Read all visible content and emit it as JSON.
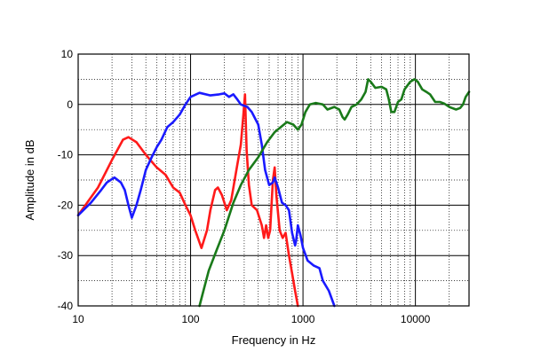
{
  "chart_data": {
    "type": "line",
    "xlabel": "Frequency in Hz",
    "ylabel": "Amplitude in dB",
    "x_scale": "log",
    "xlim": [
      10,
      30000
    ],
    "ylim": [
      -40,
      10
    ],
    "x_ticks": [
      {
        "value": 10,
        "label": "10"
      },
      {
        "value": 100,
        "label": "100"
      },
      {
        "value": 1000,
        "label": "1000"
      },
      {
        "value": 10000,
        "label": "10000"
      }
    ],
    "y_ticks": [
      {
        "value": 10,
        "label": "10"
      },
      {
        "value": 0,
        "label": "0"
      },
      {
        "value": -10,
        "label": "-10"
      },
      {
        "value": -20,
        "label": "-20"
      },
      {
        "value": -30,
        "label": "-30"
      },
      {
        "value": -40,
        "label": "-40"
      }
    ],
    "grid": true,
    "legend": "none",
    "series": [
      {
        "color": "#ff1a1a",
        "points": [
          [
            10,
            -22
          ],
          [
            15,
            -16.5
          ],
          [
            20,
            -11
          ],
          [
            25,
            -7
          ],
          [
            28,
            -6.5
          ],
          [
            33,
            -7.5
          ],
          [
            40,
            -10
          ],
          [
            50,
            -12.5
          ],
          [
            60,
            -14
          ],
          [
            70,
            -16.5
          ],
          [
            80,
            -17.5
          ],
          [
            90,
            -20
          ],
          [
            100,
            -22
          ],
          [
            110,
            -25
          ],
          [
            125,
            -28.5
          ],
          [
            140,
            -25
          ],
          [
            150,
            -21
          ],
          [
            165,
            -17
          ],
          [
            175,
            -16.5
          ],
          [
            190,
            -18
          ],
          [
            210,
            -21
          ],
          [
            230,
            -19
          ],
          [
            260,
            -12
          ],
          [
            280,
            -8
          ],
          [
            295,
            -2
          ],
          [
            305,
            2
          ],
          [
            315,
            -9
          ],
          [
            330,
            -16
          ],
          [
            350,
            -20
          ],
          [
            390,
            -21
          ],
          [
            430,
            -24
          ],
          [
            450,
            -26.5
          ],
          [
            470,
            -24
          ],
          [
            490,
            -26.5
          ],
          [
            510,
            -25
          ],
          [
            540,
            -15
          ],
          [
            560,
            -12.5
          ],
          [
            580,
            -18
          ],
          [
            620,
            -25
          ],
          [
            660,
            -26.5
          ],
          [
            700,
            -25.5
          ],
          [
            750,
            -30
          ],
          [
            800,
            -33.5
          ],
          [
            850,
            -37
          ],
          [
            900,
            -40
          ]
        ]
      },
      {
        "color": "#1a1aff",
        "points": [
          [
            10,
            -22
          ],
          [
            13,
            -19.5
          ],
          [
            16,
            -17
          ],
          [
            18,
            -15.5
          ],
          [
            21,
            -14.5
          ],
          [
            24,
            -15.5
          ],
          [
            26,
            -17
          ],
          [
            28,
            -20
          ],
          [
            30,
            -22.5
          ],
          [
            33,
            -20
          ],
          [
            36,
            -17
          ],
          [
            40,
            -13
          ],
          [
            45,
            -10.5
          ],
          [
            50,
            -8.5
          ],
          [
            55,
            -7
          ],
          [
            62,
            -4.5
          ],
          [
            70,
            -3.5
          ],
          [
            80,
            -2
          ],
          [
            90,
            0
          ],
          [
            100,
            1.5
          ],
          [
            120,
            2.3
          ],
          [
            150,
            1.8
          ],
          [
            180,
            2
          ],
          [
            200,
            2.2
          ],
          [
            220,
            1.5
          ],
          [
            240,
            2
          ],
          [
            260,
            1
          ],
          [
            280,
            0
          ],
          [
            320,
            -0.5
          ],
          [
            350,
            -1.5
          ],
          [
            400,
            -4
          ],
          [
            430,
            -8
          ],
          [
            460,
            -13
          ],
          [
            500,
            -16
          ],
          [
            540,
            -15.5
          ],
          [
            560,
            -14.5
          ],
          [
            600,
            -16.5
          ],
          [
            650,
            -19.5
          ],
          [
            700,
            -20
          ],
          [
            750,
            -21
          ],
          [
            800,
            -25.5
          ],
          [
            850,
            -28
          ],
          [
            870,
            -27
          ],
          [
            900,
            -24
          ],
          [
            950,
            -26
          ],
          [
            1000,
            -28.5
          ],
          [
            1100,
            -31
          ],
          [
            1250,
            -32
          ],
          [
            1400,
            -32.5
          ],
          [
            1500,
            -35
          ],
          [
            1700,
            -37
          ],
          [
            1900,
            -40
          ]
        ]
      },
      {
        "color": "#1a7a1a",
        "points": [
          [
            120,
            -40
          ],
          [
            130,
            -37
          ],
          [
            145,
            -33
          ],
          [
            170,
            -29
          ],
          [
            200,
            -25
          ],
          [
            240,
            -19.5
          ],
          [
            280,
            -16
          ],
          [
            330,
            -13
          ],
          [
            400,
            -10.5
          ],
          [
            480,
            -7.5
          ],
          [
            560,
            -5.5
          ],
          [
            650,
            -4.3
          ],
          [
            720,
            -3.5
          ],
          [
            820,
            -4
          ],
          [
            900,
            -5
          ],
          [
            970,
            -4
          ],
          [
            1050,
            -1.5
          ],
          [
            1150,
            0
          ],
          [
            1300,
            0.3
          ],
          [
            1500,
            0
          ],
          [
            1650,
            -1
          ],
          [
            1900,
            -0.5
          ],
          [
            2100,
            -1
          ],
          [
            2250,
            -2.5
          ],
          [
            2350,
            -3
          ],
          [
            2500,
            -2
          ],
          [
            2700,
            -0.5
          ],
          [
            3000,
            0
          ],
          [
            3300,
            1
          ],
          [
            3600,
            2.5
          ],
          [
            3800,
            5
          ],
          [
            4000,
            4.5
          ],
          [
            4400,
            3.3
          ],
          [
            5000,
            3.5
          ],
          [
            5500,
            3
          ],
          [
            5800,
            1
          ],
          [
            6100,
            -1.5
          ],
          [
            6500,
            -1.5
          ],
          [
            7000,
            0.5
          ],
          [
            7500,
            1
          ],
          [
            8000,
            3
          ],
          [
            9000,
            4.5
          ],
          [
            9800,
            5
          ],
          [
            10500,
            4.5
          ],
          [
            11500,
            3
          ],
          [
            12500,
            2.5
          ],
          [
            13500,
            2
          ],
          [
            15000,
            0.5
          ],
          [
            16500,
            0.5
          ],
          [
            18000,
            0.2
          ],
          [
            20000,
            -0.5
          ],
          [
            23000,
            -1
          ],
          [
            25000,
            -0.7
          ],
          [
            26500,
            0
          ],
          [
            28000,
            1.5
          ],
          [
            30000,
            2.5
          ]
        ]
      }
    ]
  }
}
